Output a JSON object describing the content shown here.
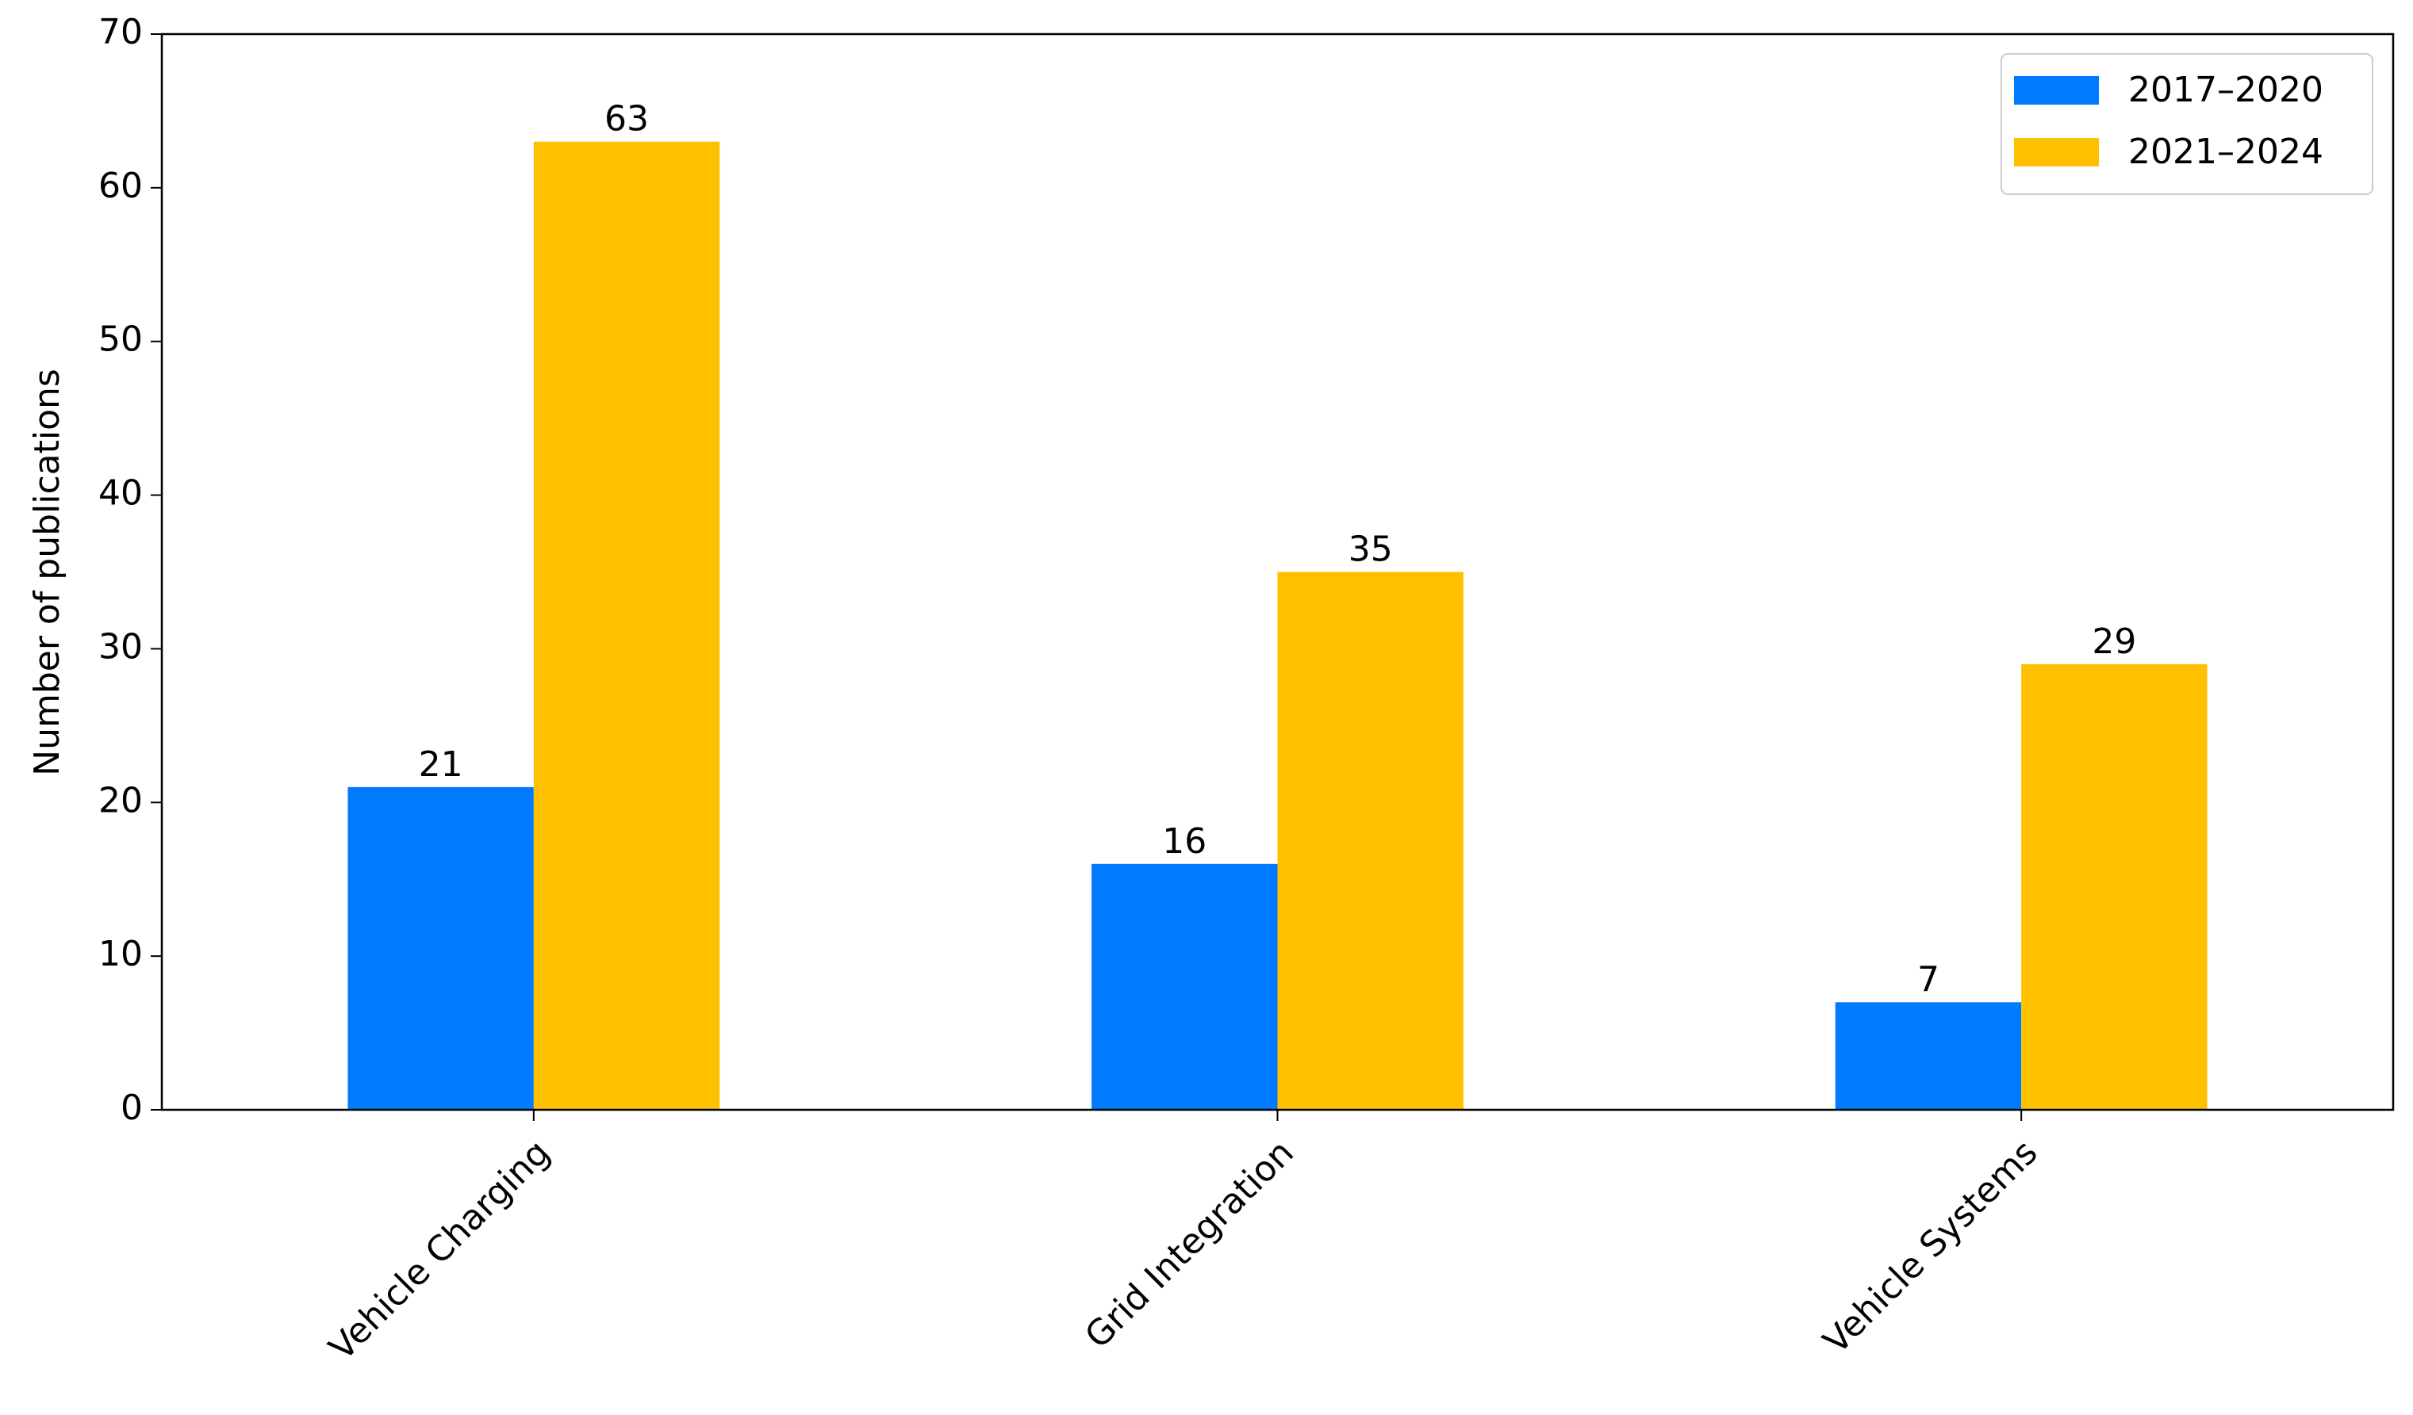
{
  "chart_data": {
    "type": "bar",
    "y_label": "Number of publications",
    "categories": [
      "Vehicle Charging",
      "Grid Integration",
      "Vehicle Systems"
    ],
    "series": [
      {
        "name": "2017–2020",
        "color": "#007bff",
        "values": [
          21,
          16,
          7
        ]
      },
      {
        "name": "2021–2024",
        "color": "#ffc000",
        "values": [
          63,
          35,
          29
        ]
      }
    ],
    "ylim": [
      0,
      70
    ],
    "yticks": [
      0,
      10,
      20,
      30,
      40,
      50,
      60,
      70
    ],
    "grid": false,
    "legend": "upper right"
  }
}
